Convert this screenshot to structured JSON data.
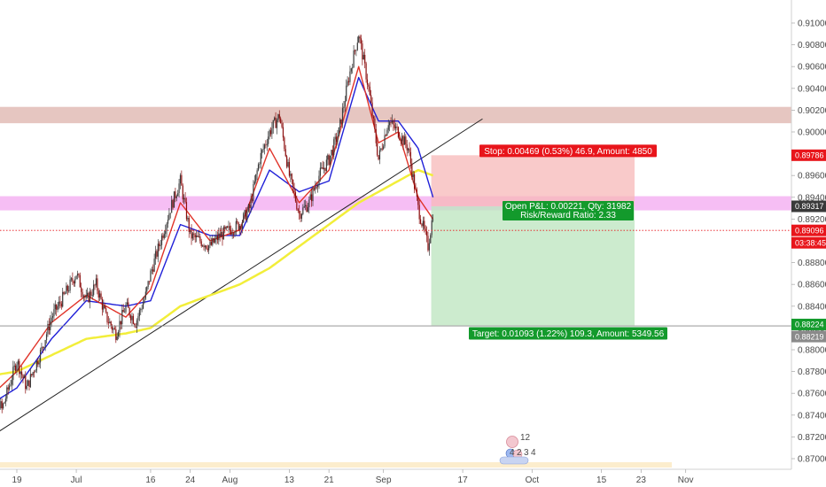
{
  "chart_data": {
    "type": "candlestick",
    "title": "",
    "ylim": [
      0.869,
      0.911
    ],
    "y_ticks": [
      "0.91000",
      "0.90800",
      "0.90600",
      "0.90400",
      "0.90200",
      "0.90000",
      "0.89800",
      "0.89600",
      "0.89400",
      "0.89200",
      "0.89000",
      "0.88800",
      "0.88600",
      "0.88400",
      "0.88200",
      "0.88000",
      "0.87800",
      "0.87600",
      "0.87400",
      "0.87200",
      "0.87000"
    ],
    "x_ticks": [
      "19",
      "Jul",
      "16",
      "24",
      "Aug",
      "13",
      "21",
      "Sep",
      "17",
      "Oct",
      "15",
      "23",
      "Nov"
    ],
    "price_labels": {
      "stop_level": "0.89786",
      "entry_level": "0.89317",
      "current_price": "0.89096",
      "countdown": "03:38:45",
      "target_level": "0.88224",
      "last_line": "0.88219"
    },
    "position": {
      "stop_text": "Stop: 0.00469 (0.53%) 46.9, Amount: 4850",
      "pnl_text": "Open P&L: 0.00221, Qty: 31982",
      "rr_text": "Risk/Reward Ratio: 2.33",
      "target_text": "Target: 0.01093 (1.22%) 109.3, Amount: 5349.56",
      "entry": 0.89317,
      "stop": 0.89786,
      "target": 0.88224
    },
    "zones": [
      {
        "name": "resistance",
        "from": 0.9008,
        "to": 0.9023,
        "color": "#d9a8a0"
      },
      {
        "name": "support",
        "from": 0.8928,
        "to": 0.8941,
        "color": "#f5b3f2"
      }
    ],
    "trendline": {
      "from": {
        "x": "Jun 12",
        "y": 0.8715
      },
      "to": {
        "x": "Sep 21",
        "y": 0.9012
      }
    },
    "close_path": [
      [
        "Jun 12",
        0.875
      ],
      [
        "Jun 14",
        0.877
      ],
      [
        "Jun 16",
        0.8745
      ],
      [
        "Jun 19",
        0.879
      ],
      [
        "Jun 21",
        0.8765
      ],
      [
        "Jun 24",
        0.88
      ],
      [
        "Jun 26",
        0.883
      ],
      [
        "Jun 28",
        0.8845
      ],
      [
        "Jul 1",
        0.887
      ],
      [
        "Jul 3",
        0.8845
      ],
      [
        "Jul 5",
        0.886
      ],
      [
        "Jul 7",
        0.883
      ],
      [
        "Jul 9",
        0.8815
      ],
      [
        "Jul 11",
        0.884
      ],
      [
        "Jul 13",
        0.8825
      ],
      [
        "Jul 15",
        0.885
      ],
      [
        "Jul 16",
        0.887
      ],
      [
        "Jul 18",
        0.89
      ],
      [
        "Jul 20",
        0.893
      ],
      [
        "Jul 22",
        0.8955
      ],
      [
        "Jul 24",
        0.8905
      ],
      [
        "Jul 26",
        0.89
      ],
      [
        "Jul 28",
        0.8895
      ],
      [
        "Jul 30",
        0.8905
      ],
      [
        "Aug 1",
        0.891
      ],
      [
        "Aug 3",
        0.8915
      ],
      [
        "Aug 5",
        0.893
      ],
      [
        "Aug 7",
        0.8975
      ],
      [
        "Aug 9",
        0.9
      ],
      [
        "Aug 11",
        0.9015
      ],
      [
        "Aug 13",
        0.896
      ],
      [
        "Aug 15",
        0.8925
      ],
      [
        "Aug 17",
        0.8935
      ],
      [
        "Aug 19",
        0.896
      ],
      [
        "Aug 21",
        0.8975
      ],
      [
        "Aug 23",
        0.9
      ],
      [
        "Aug 25",
        0.905
      ],
      [
        "Aug 27",
        0.909
      ],
      [
        "Aug 29",
        0.904
      ],
      [
        "Aug 31",
        0.8975
      ],
      [
        "Sep 2",
        0.901
      ],
      [
        "Sep 4",
        0.9
      ],
      [
        "Sep 6",
        0.8985
      ],
      [
        "Sep 8",
        0.893
      ],
      [
        "Sep 10",
        0.8895
      ],
      [
        "Sep 11",
        0.8925
      ]
    ],
    "ema_red": [
      [
        "Jun 12",
        0.875
      ],
      [
        "Jun 19",
        0.878
      ],
      [
        "Jun 26",
        0.8825
      ],
      [
        "Jul 3",
        0.885
      ],
      [
        "Jul 11",
        0.883
      ],
      [
        "Jul 16",
        0.8855
      ],
      [
        "Jul 22",
        0.8935
      ],
      [
        "Jul 28",
        0.89
      ],
      [
        "Aug 3",
        0.891
      ],
      [
        "Aug 9",
        0.8985
      ],
      [
        "Aug 15",
        0.8935
      ],
      [
        "Aug 21",
        0.8965
      ],
      [
        "Aug 27",
        0.906
      ],
      [
        "Aug 31",
        0.899
      ],
      [
        "Sep 4",
        0.9
      ],
      [
        "Sep 8",
        0.894
      ],
      [
        "Sep 11",
        0.892
      ]
    ],
    "ema_blue": [
      [
        "Jun 12",
        0.8745
      ],
      [
        "Jun 19",
        0.8765
      ],
      [
        "Jun 26",
        0.881
      ],
      [
        "Jul 3",
        0.8845
      ],
      [
        "Jul 11",
        0.884
      ],
      [
        "Jul 16",
        0.8845
      ],
      [
        "Jul 22",
        0.8915
      ],
      [
        "Jul 28",
        0.8905
      ],
      [
        "Aug 3",
        0.8905
      ],
      [
        "Aug 9",
        0.8965
      ],
      [
        "Aug 15",
        0.8945
      ],
      [
        "Aug 21",
        0.8955
      ],
      [
        "Aug 27",
        0.905
      ],
      [
        "Aug 31",
        0.901
      ],
      [
        "Sep 4",
        0.901
      ],
      [
        "Sep 8",
        0.8985
      ],
      [
        "Sep 11",
        0.894
      ]
    ],
    "sma_yellow": [
      [
        "Jun 12",
        0.8775
      ],
      [
        "Jun 19",
        0.878
      ],
      [
        "Jun 26",
        0.8795
      ],
      [
        "Jul 3",
        0.881
      ],
      [
        "Jul 11",
        0.8815
      ],
      [
        "Jul 16",
        0.882
      ],
      [
        "Jul 22",
        0.884
      ],
      [
        "Jul 28",
        0.885
      ],
      [
        "Aug 3",
        0.886
      ],
      [
        "Aug 9",
        0.8875
      ],
      [
        "Aug 15",
        0.8895
      ],
      [
        "Aug 21",
        0.8915
      ],
      [
        "Aug 27",
        0.8935
      ],
      [
        "Aug 31",
        0.8945
      ],
      [
        "Sep 4",
        0.8955
      ],
      [
        "Sep 8",
        0.8965
      ],
      [
        "Sep 11",
        0.896
      ]
    ],
    "colors": {
      "up": "#3a3a3a",
      "down": "#8b0e0e",
      "ema_red": "#e0342a",
      "ema_blue": "#2020d8",
      "sma_yellow": "#f2ee3a",
      "stop_badge": "#e8151b",
      "target_badge": "#139a2c",
      "axis_badge_dark": "#3a3a3a",
      "axis_badge_grey": "#8a8a8a"
    },
    "event_markers": {
      "top_count": "12",
      "bottom_numbers": [
        "4",
        "2",
        "3",
        "4"
      ]
    }
  }
}
